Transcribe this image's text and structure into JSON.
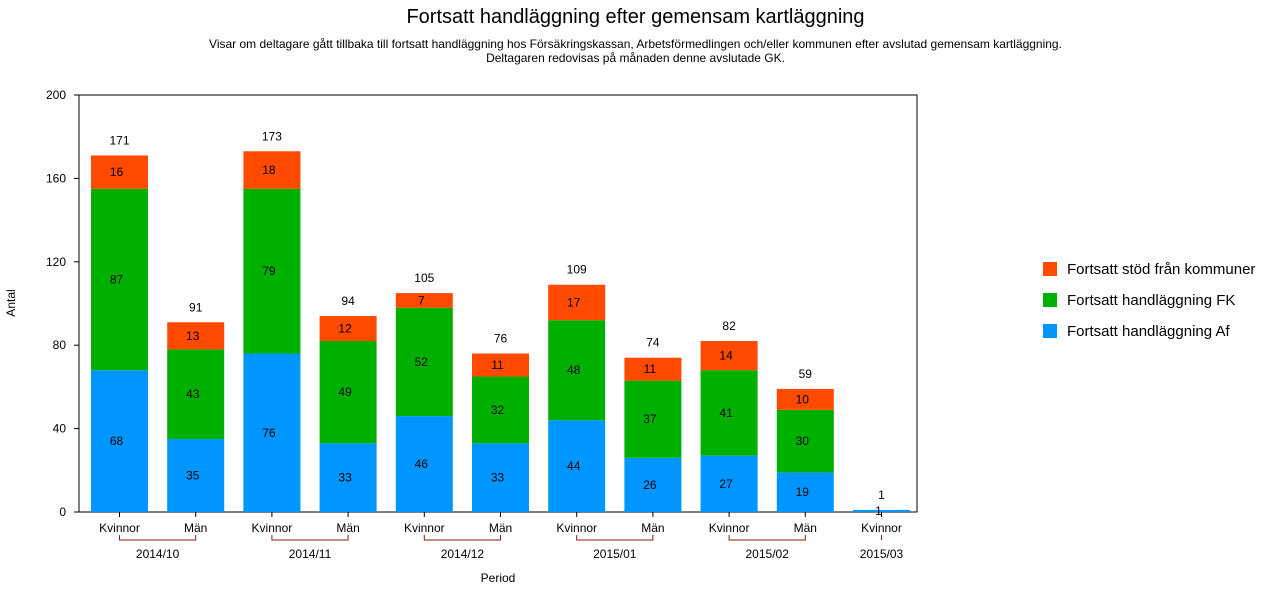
{
  "chart_data": {
    "type": "bar",
    "stacked": true,
    "title": "Fortsatt handläggning efter gemensam kartläggning",
    "subtitle_lines": [
      "Visar om deltagare gått tillbaka till fortsatt handläggning hos Försäkringskassan, Arbetsförmedlingen och/eller kommunen efter avslutad gemensam kartläggning.",
      "Deltagaren redovisas på månaden denne avslutade GK."
    ],
    "xlabel": "Period",
    "ylabel": "Antal",
    "ylim": [
      0,
      200
    ],
    "yticks": [
      "0",
      "40",
      "80",
      "120",
      "160",
      "200"
    ],
    "grid": false,
    "legend_position": "right",
    "groups": [
      {
        "label": "2014/10",
        "categories": [
          "Kvinnor",
          "Män"
        ]
      },
      {
        "label": "2014/11",
        "categories": [
          "Kvinnor",
          "Män"
        ]
      },
      {
        "label": "2014/12",
        "categories": [
          "Kvinnor",
          "Män"
        ]
      },
      {
        "label": "2015/01",
        "categories": [
          "Kvinnor",
          "Män"
        ]
      },
      {
        "label": "2015/02",
        "categories": [
          "Kvinnor",
          "Män"
        ]
      },
      {
        "label": "2015/03",
        "categories": [
          "Kvinnor"
        ]
      }
    ],
    "series": [
      {
        "name": "Fortsatt handläggning Af",
        "color": "#0096ff",
        "values": [
          68,
          35,
          76,
          33,
          46,
          33,
          44,
          26,
          27,
          19,
          1
        ]
      },
      {
        "name": "Fortsatt handläggning FK",
        "color": "#00b000",
        "values": [
          87,
          43,
          79,
          49,
          52,
          32,
          48,
          37,
          41,
          30,
          null
        ]
      },
      {
        "name": "Fortsatt stöd från kommuner",
        "color": "#ff4a00",
        "values": [
          16,
          13,
          18,
          12,
          7,
          11,
          17,
          11,
          14,
          10,
          null
        ]
      }
    ],
    "totals": [
      171,
      91,
      173,
      94,
      105,
      76,
      109,
      74,
      82,
      59,
      1
    ],
    "legend_order": [
      "Fortsatt stöd från kommuner",
      "Fortsatt handläggning FK",
      "Fortsatt handläggning Af"
    ]
  }
}
